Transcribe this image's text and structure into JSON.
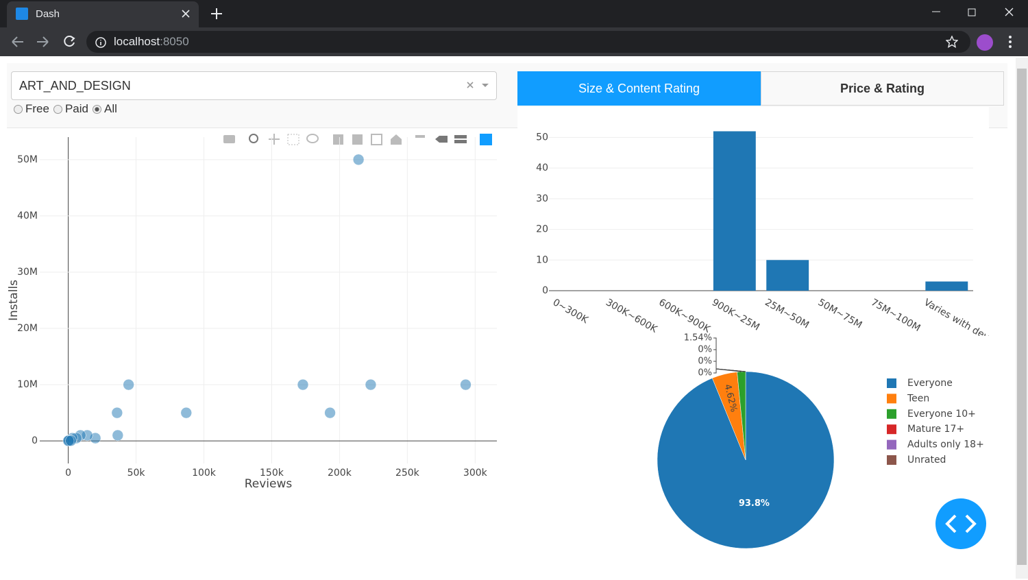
{
  "browser": {
    "tab_title": "Dash",
    "url_host": "localhost",
    "url_port": ":8050"
  },
  "controls": {
    "dropdown_value": "ART_AND_DESIGN",
    "radio_options": [
      "Free",
      "Paid",
      "All"
    ],
    "radio_selected": 2
  },
  "tabs": {
    "labels": [
      "Size & Content Rating",
      "Price & Rating"
    ],
    "active": 0
  },
  "chart_data": [
    {
      "type": "scatter",
      "x_label": "Reviews",
      "y_label": "Installs",
      "x": [
        214000,
        44500,
        173000,
        223000,
        293000,
        36000,
        87000,
        193000,
        36500,
        20000,
        14000,
        9000,
        6000,
        3000,
        1000,
        300,
        100,
        2000
      ],
      "y": [
        50000000,
        10000000,
        10000000,
        10000000,
        10000000,
        5000000,
        5000000,
        5000000,
        1000000,
        500000,
        1000000,
        1000000,
        500000,
        500000,
        100000,
        100000,
        10000,
        50000
      ],
      "color": "#1f77b4",
      "opacity": 0.5,
      "xlim": [
        -21000,
        316000
      ],
      "ylim": [
        -4000000,
        54000000
      ],
      "xticks": [
        0,
        {
          "value": 50000,
          "label": "50k"
        },
        {
          "value": 100000,
          "label": "100k"
        },
        {
          "value": 150000,
          "label": "150k"
        },
        {
          "value": 200000,
          "label": "200k"
        },
        {
          "value": 250000,
          "label": "250k"
        },
        {
          "value": 300000,
          "label": "300k"
        }
      ],
      "yticks": [
        0,
        {
          "value": 10000000,
          "label": "10M"
        },
        {
          "value": 20000000,
          "label": "20M"
        },
        {
          "value": 30000000,
          "label": "30M"
        },
        {
          "value": 40000000,
          "label": "40M"
        },
        {
          "value": 50000000,
          "label": "50M"
        }
      ],
      "grid": true
    },
    {
      "type": "bar",
      "categories": [
        "0~300K",
        "300K~600K",
        "600K~900K",
        "900K~25M",
        "25M~50M",
        "50M~75M",
        "75M~100M",
        "Varies with device"
      ],
      "values": [
        0,
        0,
        0,
        52,
        10,
        0,
        0,
        3
      ],
      "color": "#1f77b4",
      "ylim": [
        0,
        53
      ],
      "yticks": [
        0,
        10,
        20,
        30,
        40,
        50
      ],
      "grid": true
    },
    {
      "type": "pie",
      "labels": [
        "Everyone",
        "Teen",
        "Everyone 10+",
        "Mature 17+",
        "Adults only 18+",
        "Unrated"
      ],
      "values": [
        93.8,
        4.62,
        1.54,
        0,
        0,
        0
      ],
      "value_labels": [
        "93.8%",
        "4.62%",
        "1.54%",
        "0%",
        "0%",
        "0%"
      ],
      "colors": [
        "#1f77b4",
        "#ff7f0e",
        "#2ca02c",
        "#d62728",
        "#9467bd",
        "#8c564b"
      ],
      "direction": "clockwise",
      "legend": "right"
    }
  ]
}
